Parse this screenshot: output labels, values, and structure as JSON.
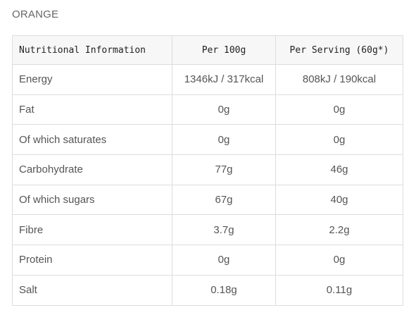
{
  "product": {
    "title": "ORANGE"
  },
  "table": {
    "headers": [
      "Nutritional Information",
      "Per 100g",
      "Per Serving (60g*)"
    ],
    "rows": [
      {
        "nutrient": "Energy",
        "per_100g": "1346kJ / 317kcal",
        "per_serving": "808kJ / 190kcal"
      },
      {
        "nutrient": "Fat",
        "per_100g": "0g",
        "per_serving": "0g"
      },
      {
        "nutrient": "Of which saturates",
        "per_100g": "0g",
        "per_serving": "0g"
      },
      {
        "nutrient": "Carbohydrate",
        "per_100g": "77g",
        "per_serving": "46g"
      },
      {
        "nutrient": "Of which sugars",
        "per_100g": "67g",
        "per_serving": "40g"
      },
      {
        "nutrient": "Fibre",
        "per_100g": "3.7g",
        "per_serving": "2.2g"
      },
      {
        "nutrient": "Protein",
        "per_100g": "0g",
        "per_serving": "0g"
      },
      {
        "nutrient": "Salt",
        "per_100g": "0.18g",
        "per_serving": "0.11g"
      }
    ]
  }
}
